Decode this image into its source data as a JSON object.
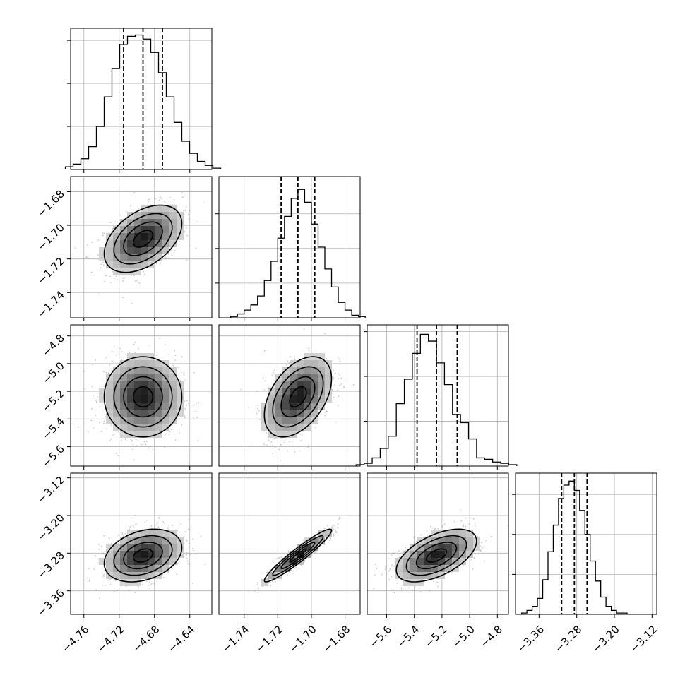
{
  "chart_data": {
    "type": "corner",
    "title": "",
    "parameters": [
      {
        "range": [
          -4.775,
          -4.615
        ],
        "ticks": [
          -4.76,
          -4.72,
          -4.68,
          -4.64
        ],
        "tick_labels": [
          "−4.76",
          "−4.72",
          "−4.68",
          "−4.64"
        ],
        "quantiles": [
          -4.715,
          -4.693,
          -4.671
        ],
        "center": -4.693,
        "sigma": 0.022
      },
      {
        "range": [
          -1.755,
          -1.671
        ],
        "ticks": [
          -1.74,
          -1.72,
          -1.7,
          -1.68
        ],
        "tick_labels": [
          "−1.74",
          "−1.72",
          "−1.70",
          "−1.68"
        ],
        "quantiles": [
          -1.718,
          -1.708,
          -1.698
        ],
        "center": -1.708,
        "sigma": 0.01
      },
      {
        "range": [
          -5.74,
          -4.72
        ],
        "ticks": [
          -5.6,
          -5.4,
          -5.2,
          -5.0,
          -4.8
        ],
        "tick_labels": [
          "−5.6",
          "−5.4",
          "−5.2",
          "−5.0",
          "−4.8"
        ],
        "quantiles": [
          -5.38,
          -5.24,
          -5.09
        ],
        "center": -5.24,
        "sigma": 0.145
      },
      {
        "range": [
          -3.41,
          -3.11
        ],
        "ticks": [
          -3.36,
          -3.28,
          -3.2,
          -3.12
        ],
        "tick_labels": [
          "−3.36",
          "−3.28",
          "−3.20",
          "−3.12"
        ],
        "quantiles": [
          -3.312,
          -3.285,
          -3.258
        ],
        "center": -3.285,
        "sigma": 0.028
      }
    ],
    "histograms": [
      {
        "param": 0,
        "ylim": [
          0,
          1.05
        ],
        "yticks": [
          0.32,
          0.64,
          0.96
        ],
        "counts": [
          0.02,
          0.04,
          0.08,
          0.17,
          0.32,
          0.54,
          0.75,
          0.93,
          0.99,
          1.0,
          0.97,
          0.87,
          0.72,
          0.54,
          0.35,
          0.21,
          0.12,
          0.06,
          0.03,
          0.01
        ]
      },
      {
        "param": 1,
        "ylim": [
          0,
          1.1
        ],
        "yticks": [
          0.27,
          0.54,
          0.81
        ],
        "counts": [
          0.01,
          0.03,
          0.06,
          0.1,
          0.17,
          0.29,
          0.44,
          0.62,
          0.79,
          0.93,
          1.0,
          0.9,
          0.73,
          0.55,
          0.38,
          0.24,
          0.12,
          0.06,
          0.02,
          0.01
        ]
      },
      {
        "param": 2,
        "ylim": [
          0,
          1.04
        ],
        "yticks": [
          0.33,
          0.66,
          0.99
        ],
        "counts": [
          0.01,
          0.02,
          0.06,
          0.13,
          0.22,
          0.46,
          0.64,
          0.83,
          0.97,
          0.92,
          0.76,
          0.6,
          0.38,
          0.32,
          0.2,
          0.06,
          0.05,
          0.03,
          0.02,
          0.01
        ]
      },
      {
        "param": 3,
        "ylim": [
          0,
          1.06
        ],
        "yticks": [
          0.3,
          0.6,
          0.9
        ],
        "counts": [
          0.01,
          0.03,
          0.06,
          0.12,
          0.26,
          0.47,
          0.67,
          0.87,
          0.97,
          1.0,
          0.93,
          0.78,
          0.6,
          0.4,
          0.25,
          0.13,
          0.06,
          0.03,
          0.01,
          0.01
        ]
      }
    ],
    "joint": [
      {
        "x": 0,
        "y": 1,
        "correlation": 0.45
      },
      {
        "x": 0,
        "y": 2,
        "correlation": 0.0
      },
      {
        "x": 1,
        "y": 2,
        "correlation": 0.45
      },
      {
        "x": 0,
        "y": 3,
        "correlation": 0.3
      },
      {
        "x": 1,
        "y": 3,
        "correlation": 0.95
      },
      {
        "x": 2,
        "y": 3,
        "correlation": 0.55
      }
    ],
    "contour_levels_sigma": [
      0.5,
      1.0,
      1.5,
      2.0
    ],
    "grid": true,
    "quantile_lines": "dashed"
  }
}
